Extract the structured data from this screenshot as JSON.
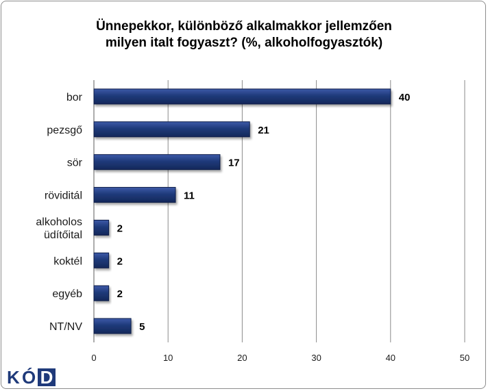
{
  "chart_data": {
    "type": "bar",
    "orientation": "horizontal",
    "title_line1": "Ünnepekkor, különböző alkalmakkor jellemzően",
    "title_line2": "milyen italt fogyaszt? (%, alkoholfogyasztók)",
    "categories": [
      [
        "bor"
      ],
      [
        "pezsgő"
      ],
      [
        "sör"
      ],
      [
        "röviditál"
      ],
      [
        "alkoholos",
        "üdítőital"
      ],
      [
        "koktél"
      ],
      [
        "egyéb"
      ],
      [
        "NT/NV"
      ]
    ],
    "values": [
      40,
      21,
      17,
      11,
      2,
      2,
      2,
      5
    ],
    "value_labels": [
      "40",
      "21",
      "17",
      "11",
      "2",
      "2",
      "2",
      "5"
    ],
    "xlim": [
      0,
      50
    ],
    "xticks": [
      "0",
      "10",
      "20",
      "30",
      "40",
      "50"
    ],
    "xtick_values": [
      0,
      10,
      20,
      30,
      40,
      50
    ],
    "grid": "vertical",
    "bar_color": "#1f3a7a"
  },
  "logo": {
    "letters": [
      "K",
      "Ó",
      "D"
    ],
    "colors": [
      "#1f3a7a",
      "#1f3a7a",
      "#ffffff"
    ]
  }
}
